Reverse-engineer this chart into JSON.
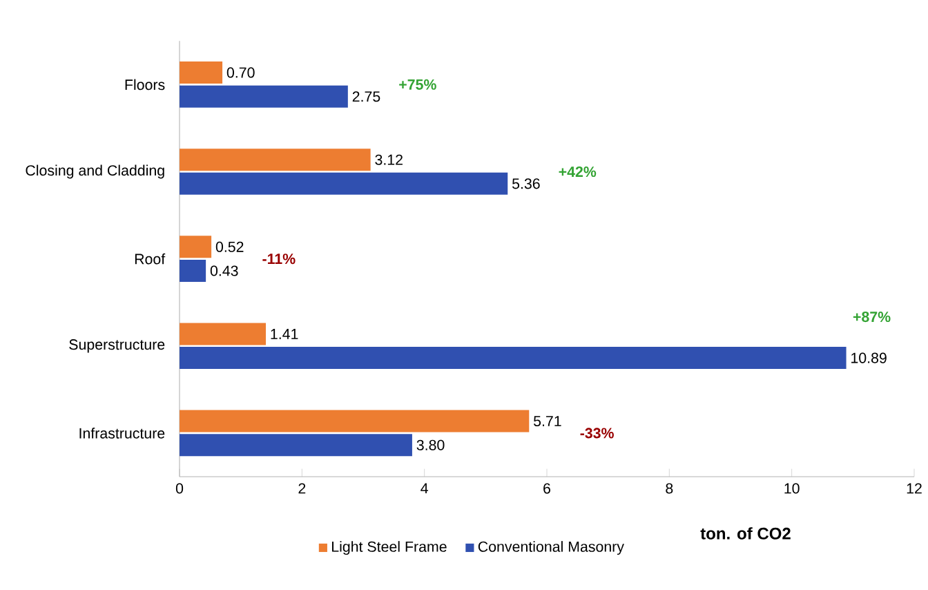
{
  "chart_data": {
    "type": "bar",
    "orientation": "horizontal",
    "categories": [
      "Floors",
      "Closing and Cladding",
      "Roof",
      "Superstructure",
      "Infrastructure"
    ],
    "series": [
      {
        "name": "Light Steel Frame",
        "color": "#ed7d31",
        "values": [
          0.7,
          3.12,
          0.52,
          1.41,
          5.71
        ],
        "value_labels": [
          "0.70",
          "3.12",
          "0.52",
          "1.41",
          "5.71"
        ]
      },
      {
        "name": "Conventional Masonry",
        "color": "#3050b0",
        "values": [
          2.75,
          5.36,
          0.43,
          10.89,
          3.8
        ],
        "value_labels": [
          "2.75",
          "5.36",
          "0.43",
          "10.89",
          "3.80"
        ]
      }
    ],
    "xlim": [
      0,
      12
    ],
    "xticks": [
      0,
      2,
      4,
      6,
      8,
      10,
      12
    ],
    "xlabel": "ton. of CO2",
    "legend": "bottom",
    "grid": false,
    "annotations": [
      "+75%",
      "+42%",
      "-11%",
      "+87%",
      "-33%"
    ]
  }
}
